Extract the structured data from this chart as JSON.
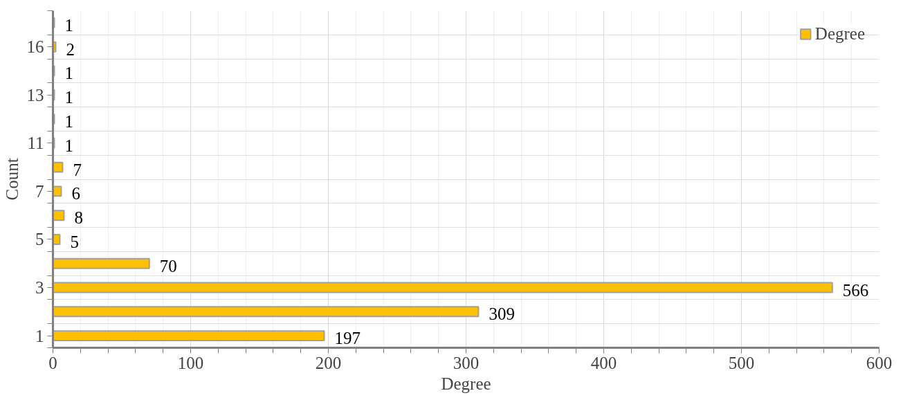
{
  "chart_data": {
    "type": "bar",
    "orientation": "horizontal",
    "xlabel": "Degree",
    "ylabel": "Count",
    "categories": [
      null,
      "16",
      null,
      "13",
      null,
      "11",
      null,
      "7",
      null,
      "5",
      null,
      "3",
      null,
      "1"
    ],
    "series": [
      {
        "name": "Degree",
        "color": "#ffc000",
        "values": [
          1,
          2,
          1,
          1,
          1,
          1,
          7,
          6,
          8,
          5,
          70,
          566,
          309,
          197
        ]
      }
    ],
    "xlim": [
      0,
      600
    ],
    "xticks": [
      0,
      100,
      200,
      300,
      400,
      500,
      600
    ],
    "grid": true,
    "legend": "top right",
    "data_labels": true
  }
}
